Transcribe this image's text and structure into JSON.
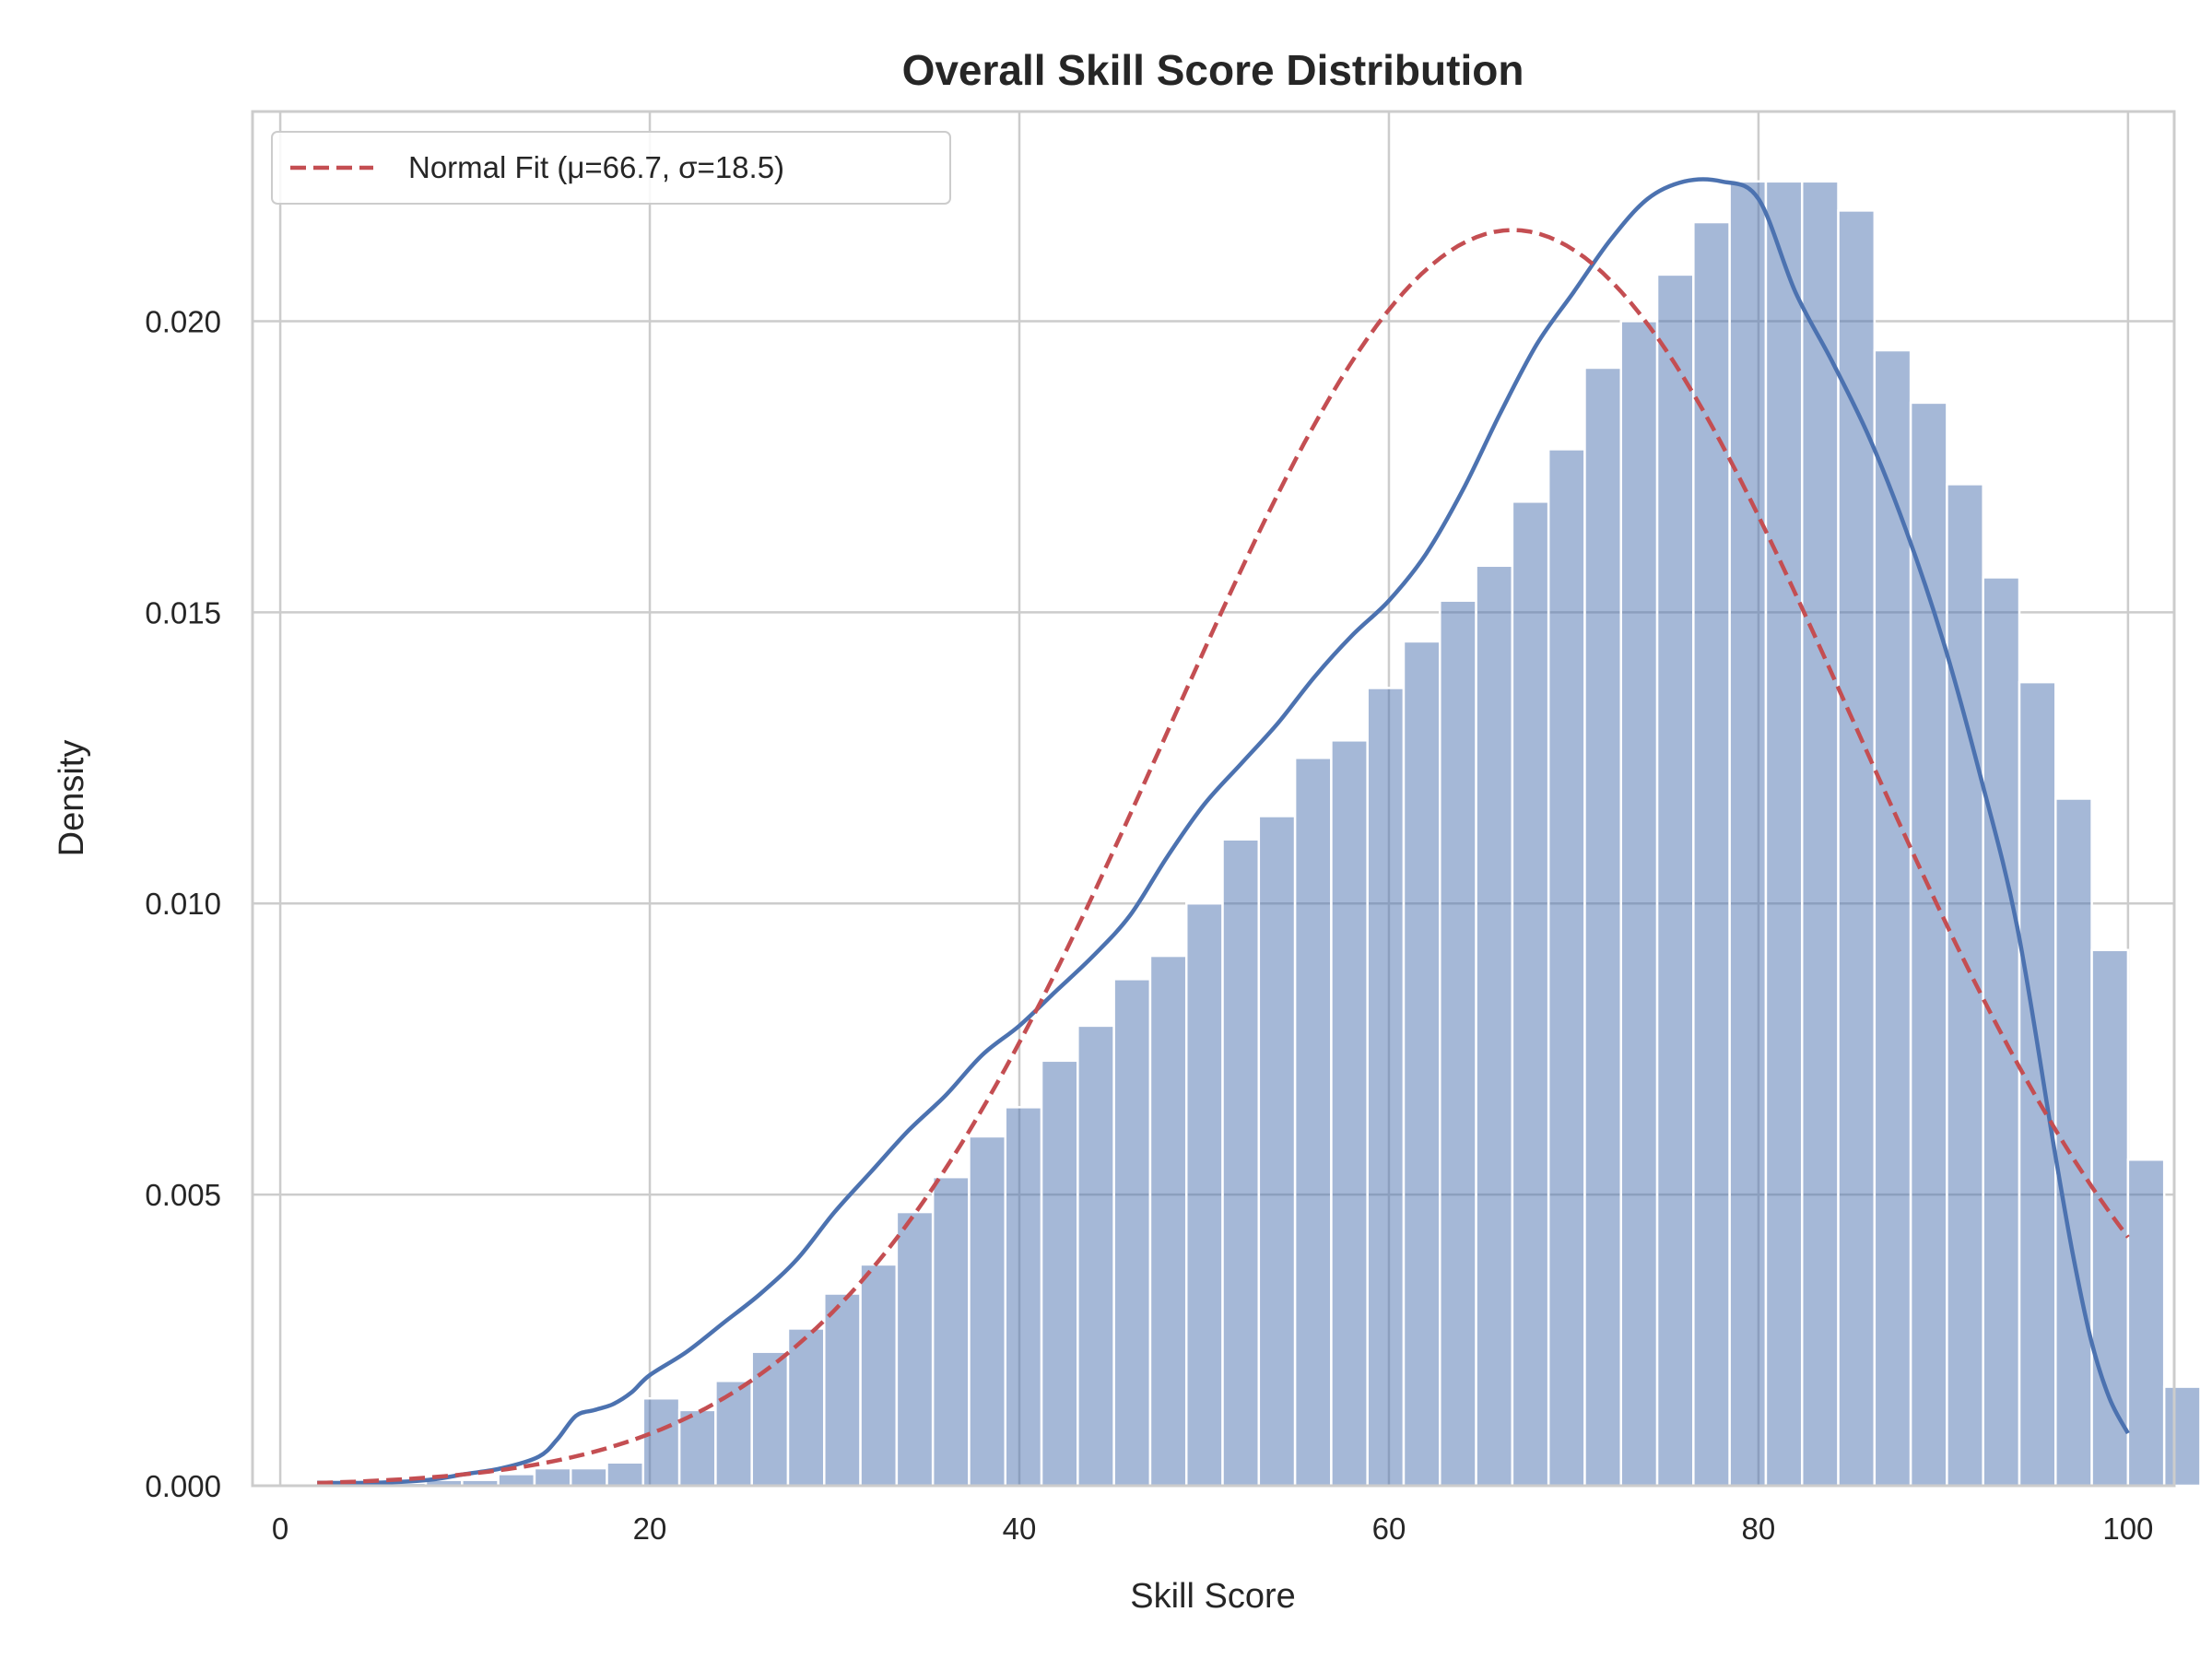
{
  "chart_data": {
    "type": "bar",
    "title": "Overall Skill Score Distribution",
    "xlabel": "Skill Score",
    "ylabel": "Density",
    "xlim": [
      -1.5,
      102.5
    ],
    "ylim": [
      0,
      0.0236
    ],
    "xticks": [
      0,
      20,
      40,
      60,
      80,
      100
    ],
    "xtick_labels": [
      "0",
      "20",
      "40",
      "60",
      "80",
      "100"
    ],
    "yticks": [
      0,
      0.005,
      0.01,
      0.015,
      0.02
    ],
    "ytick_labels": [
      "0.000",
      "0.005",
      "0.010",
      "0.015",
      "0.020"
    ],
    "grid": true,
    "legend_position": "top-left",
    "legend": [
      "Normal Fit (μ=66.7, σ=18.5)"
    ],
    "histogram": {
      "bin_start": 2.0,
      "bin_width": 1.96,
      "values": [
        5e-05,
        5e-05,
        5e-05,
        0.0001,
        0.0001,
        0.0002,
        0.0003,
        0.0003,
        0.0004,
        0.0015,
        0.0013,
        0.0018,
        0.0023,
        0.0027,
        0.0033,
        0.0038,
        0.0047,
        0.0053,
        0.006,
        0.0065,
        0.0073,
        0.0079,
        0.0087,
        0.0091,
        0.01,
        0.0111,
        0.0115,
        0.0125,
        0.0128,
        0.0137,
        0.0145,
        0.0152,
        0.0158,
        0.0169,
        0.0178,
        0.0192,
        0.02,
        0.0208,
        0.0217,
        0.0224,
        0.0224,
        0.0224,
        0.0219,
        0.0195,
        0.0186,
        0.0172,
        0.0156,
        0.0138,
        0.0118,
        0.0092,
        0.0056,
        0.0017
      ],
      "color": "#4c72b0"
    },
    "series": [
      {
        "kind": "kde",
        "color": "#4c72b0",
        "x": [
          2,
          5,
          8,
          10,
          12,
          14,
          15,
          16,
          17,
          18,
          19,
          20,
          22,
          24,
          26,
          28,
          30,
          32,
          34,
          36,
          38,
          40,
          42,
          44,
          46,
          48,
          50,
          52,
          54,
          56,
          58,
          60,
          62,
          64,
          66,
          68,
          70,
          72,
          74,
          76,
          78,
          80,
          82,
          84,
          86,
          88,
          90,
          92,
          94,
          96,
          97,
          98,
          99,
          100
        ],
        "y": [
          5e-05,
          5e-05,
          0.0001,
          0.0002,
          0.0003,
          0.0005,
          0.0008,
          0.0012,
          0.0013,
          0.0014,
          0.0016,
          0.0019,
          0.0023,
          0.0028,
          0.0033,
          0.0039,
          0.0047,
          0.0054,
          0.0061,
          0.0067,
          0.0074,
          0.0079,
          0.0085,
          0.0091,
          0.0098,
          0.0108,
          0.0117,
          0.0124,
          0.0131,
          0.0139,
          0.0146,
          0.0152,
          0.016,
          0.0171,
          0.0184,
          0.0196,
          0.0205,
          0.0214,
          0.0221,
          0.0224,
          0.0224,
          0.0221,
          0.0205,
          0.0193,
          0.018,
          0.0164,
          0.0145,
          0.0122,
          0.0096,
          0.0058,
          0.004,
          0.0025,
          0.0015,
          0.0009
        ]
      },
      {
        "name": "Normal Fit (μ=66.7, σ=18.5)",
        "kind": "normal_fit",
        "color": "#c44e52",
        "dashed": true,
        "mu": 66.7,
        "sigma": 18.5,
        "x_range": [
          2,
          100
        ]
      }
    ]
  }
}
